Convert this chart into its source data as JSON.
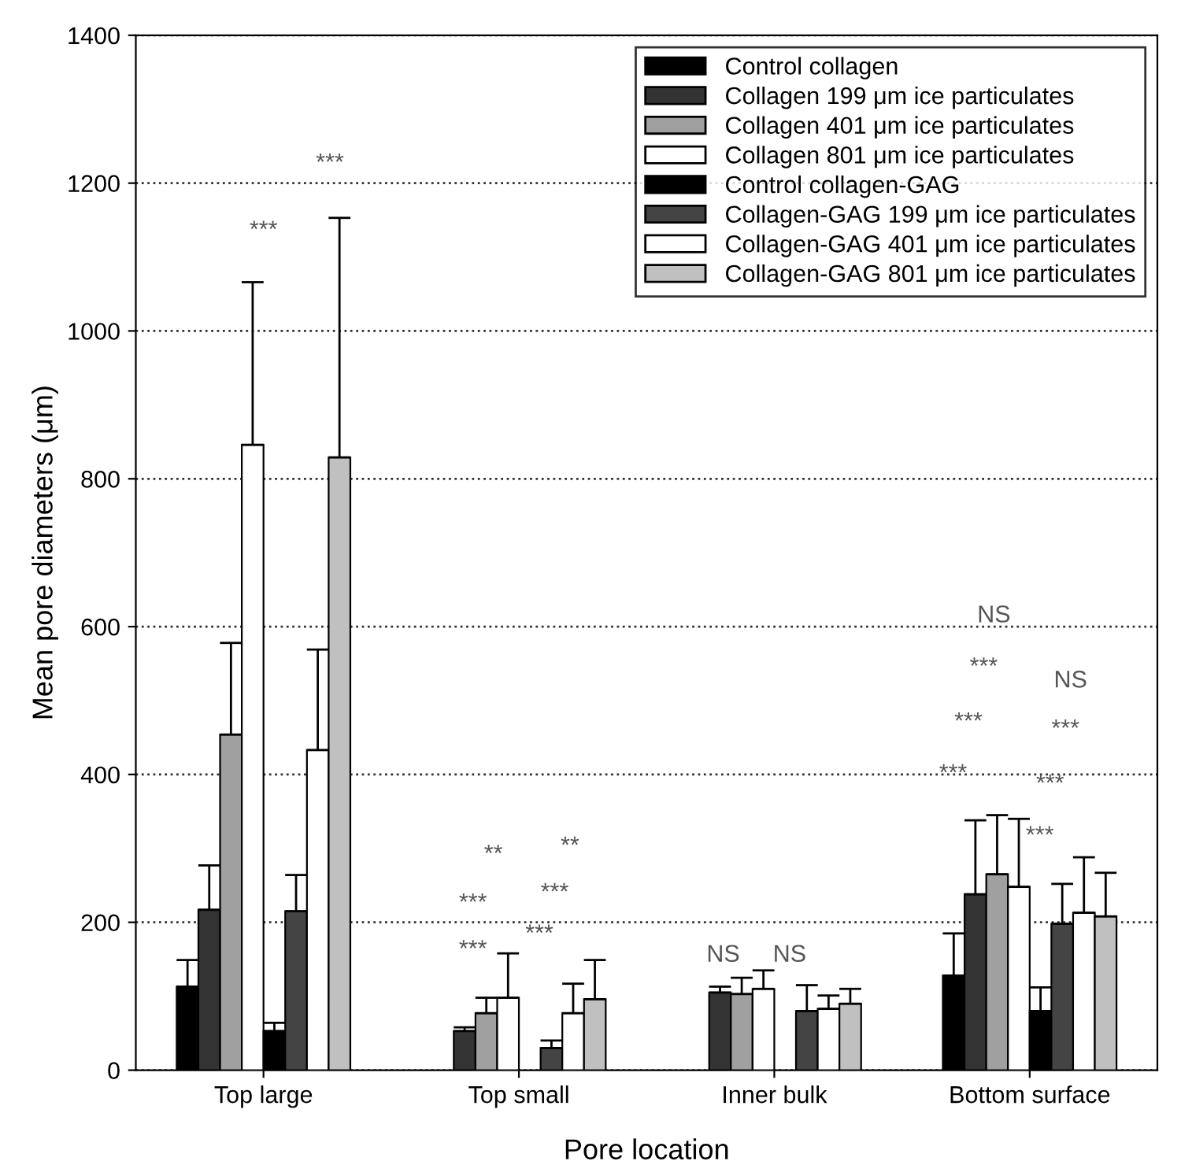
{
  "chart_data": {
    "type": "bar",
    "xlabel": "Pore location",
    "ylabel": "Mean pore diameters (μm)",
    "categories": [
      "Top large",
      "Top small",
      "Inner bulk",
      "Bottom surface"
    ],
    "ylim": [
      0,
      1400
    ],
    "yticks": [
      0,
      200,
      400,
      600,
      800,
      1000,
      1200,
      1400
    ],
    "grid": "y",
    "legend": "top right",
    "series": [
      {
        "name": "Control collagen",
        "color": "#000000",
        "values": [
          113,
          null,
          null,
          128
        ],
        "errors": [
          [
            113,
            149
          ],
          null,
          null,
          [
            128,
            185
          ]
        ]
      },
      {
        "name": "Collagen 199 μm ice particulates",
        "color": "#333333",
        "values": [
          217,
          53,
          105,
          238
        ],
        "errors": [
          [
            217,
            277
          ],
          [
            53,
            58
          ],
          [
            105,
            113
          ],
          [
            238,
            338
          ]
        ]
      },
      {
        "name": "Collagen 401 μm ice particulates",
        "color": "#a0a0a0",
        "values": [
          454,
          77,
          103,
          265
        ],
        "errors": [
          [
            454,
            578
          ],
          [
            77,
            98
          ],
          [
            103,
            125
          ],
          [
            265,
            345
          ]
        ]
      },
      {
        "name": "Collagen 801 μm ice particulates",
        "color": "#ffffff",
        "values": [
          846,
          98,
          110,
          248
        ],
        "errors": [
          [
            846,
            1066
          ],
          [
            98,
            158
          ],
          [
            110,
            135
          ],
          [
            248,
            340
          ]
        ]
      },
      {
        "name": "Control collagen-GAG",
        "color": "#000000",
        "values": [
          53,
          null,
          null,
          80
        ],
        "errors": [
          [
            53,
            64
          ],
          null,
          null,
          [
            80,
            112
          ]
        ]
      },
      {
        "name": "Collagen-GAG 199 μm ice particulates",
        "color": "#444444",
        "values": [
          215,
          30,
          80,
          198
        ],
        "errors": [
          [
            215,
            264
          ],
          [
            30,
            40
          ],
          [
            80,
            115
          ],
          [
            198,
            252
          ]
        ]
      },
      {
        "name": "Collagen-GAG 401 μm ice particulates",
        "color": "#ffffff",
        "values": [
          433,
          77,
          83,
          213
        ],
        "errors": [
          [
            433,
            569
          ],
          [
            77,
            117
          ],
          [
            83,
            101
          ],
          [
            213,
            288
          ]
        ]
      },
      {
        "name": "Collagen-GAG 801 μm ice particulates",
        "color": "#c0c0c0",
        "values": [
          829,
          96,
          90,
          208
        ],
        "errors": [
          [
            829,
            1153
          ],
          [
            96,
            149
          ],
          [
            90,
            110
          ],
          [
            208,
            267
          ]
        ]
      }
    ],
    "annotations": [
      "***",
      "***",
      "***",
      "***",
      "**",
      "***",
      "***",
      "**",
      "NS",
      "NS",
      "***",
      "***",
      "***",
      "NS",
      "***",
      "***",
      "***",
      "NS"
    ]
  }
}
